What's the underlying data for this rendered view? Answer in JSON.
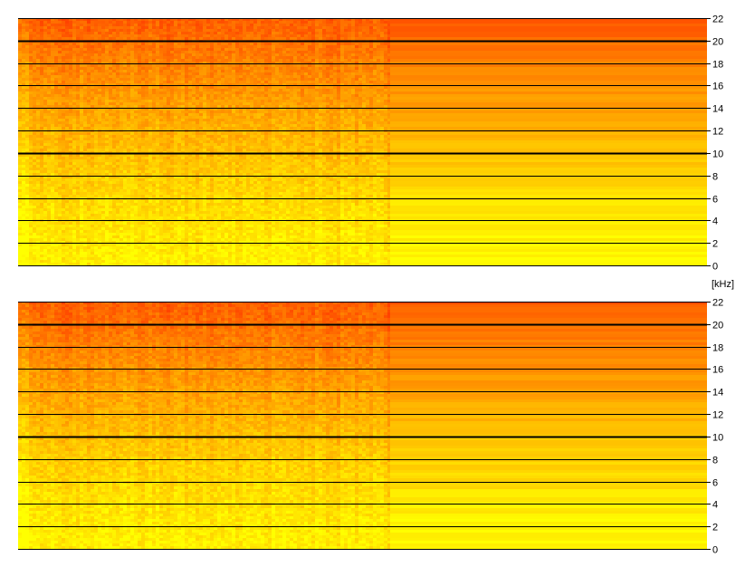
{
  "chart_data": {
    "type": "heatmap",
    "description_kind": "spectrogram",
    "y_unit_label": "[kHz]",
    "ylim": [
      0,
      22
    ],
    "channels": [
      {
        "yticks": [
          0,
          2,
          4,
          6,
          8,
          10,
          12,
          14,
          16,
          18,
          20,
          22
        ],
        "ytick_labels": [
          "0",
          "2",
          "4",
          "6",
          "8",
          "10",
          "12",
          "14",
          "16",
          "18",
          "20",
          "22"
        ]
      },
      {
        "yticks": [
          0,
          2,
          4,
          6,
          8,
          10,
          12,
          14,
          16,
          18,
          20,
          22
        ],
        "ytick_labels": [
          "0",
          "2",
          "4",
          "6",
          "8",
          "10",
          "12",
          "14",
          "16",
          "18",
          "20",
          "22"
        ]
      }
    ],
    "emphasized_gridlines_khz": [
      10,
      20
    ],
    "grid": true,
    "colormap": [
      "#ffff00",
      "#ffcc00",
      "#ff9900",
      "#ff5500"
    ],
    "noisy_segment_fraction": 0.54,
    "flat_segment_fraction": 0.46
  }
}
